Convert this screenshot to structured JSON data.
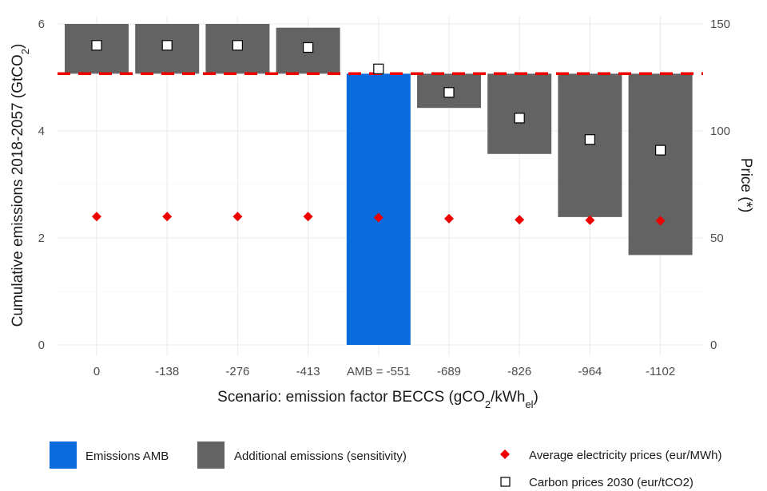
{
  "chart_data": {
    "type": "bar",
    "categories": [
      "0",
      "-138",
      "-276",
      "-413",
      "AMB = -551",
      "-689",
      "-826",
      "-964",
      "-1102"
    ],
    "highlight_index": 4,
    "series": [
      {
        "name": "Emissions AMB",
        "kind": "bar",
        "color": "#0a6cdc",
        "bottom": [
          null,
          null,
          null,
          null,
          0,
          null,
          null,
          null,
          null
        ],
        "top": [
          null,
          null,
          null,
          null,
          5.07,
          null,
          null,
          null,
          null
        ]
      },
      {
        "name": "Additional emissions (sensitivity)",
        "kind": "bar",
        "color": "#636363",
        "bottom": [
          5.07,
          5.07,
          5.07,
          5.07,
          null,
          4.43,
          3.57,
          2.39,
          1.68
        ],
        "top": [
          6.0,
          6.0,
          6.0,
          5.93,
          null,
          5.07,
          5.07,
          5.07,
          5.07
        ]
      },
      {
        "name": "Average electricity prices (eur/MWh)",
        "kind": "point",
        "marker": "diamond",
        "axis": "right",
        "color": "#ee0000",
        "values": [
          60,
          60,
          60,
          60,
          59.5,
          59,
          58.5,
          58.3,
          58
        ]
      },
      {
        "name": "Carbon prices 2030 (eur/tCO2)",
        "kind": "point",
        "marker": "square",
        "axis": "right",
        "color": "#000000",
        "values": [
          140,
          140,
          140,
          139,
          129,
          118,
          106,
          96,
          91
        ]
      }
    ],
    "reference_line": {
      "y": 5.07,
      "style": "dashed",
      "color": "#ee0000"
    },
    "ylim_left": [
      0,
      6
    ],
    "yticks_left": [
      0,
      2,
      4,
      6
    ],
    "ylim_right": [
      0,
      150
    ],
    "yticks_right": [
      0,
      50,
      100,
      150
    ],
    "ylabel_left": "Cumulative emissions 2018-2057  (GtCO",
    "ylabel_left_sub": "2",
    "ylabel_left_end": ")",
    "ylabel_right": "Price  (*)",
    "xlabel_main": "Scenario: emission factor BECCS  (gCO",
    "xlabel_sub1": "2",
    "xlabel_mid": "/kWh",
    "xlabel_sub2": "el",
    "xlabel_end": ")",
    "grid": true,
    "legend_position": "bottom"
  }
}
